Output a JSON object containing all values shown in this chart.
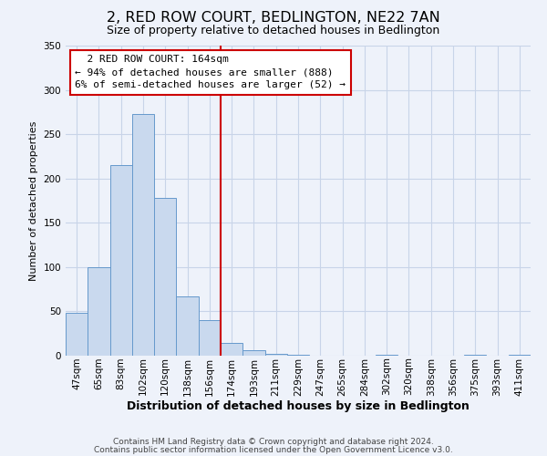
{
  "title": "2, RED ROW COURT, BEDLINGTON, NE22 7AN",
  "subtitle": "Size of property relative to detached houses in Bedlington",
  "xlabel": "Distribution of detached houses by size in Bedlington",
  "ylabel": "Number of detached properties",
  "footer_line1": "Contains HM Land Registry data © Crown copyright and database right 2024.",
  "footer_line2": "Contains public sector information licensed under the Open Government Licence v3.0.",
  "bin_labels": [
    "47sqm",
    "65sqm",
    "83sqm",
    "102sqm",
    "120sqm",
    "138sqm",
    "156sqm",
    "174sqm",
    "193sqm",
    "211sqm",
    "229sqm",
    "247sqm",
    "265sqm",
    "284sqm",
    "302sqm",
    "320sqm",
    "338sqm",
    "356sqm",
    "375sqm",
    "393sqm",
    "411sqm"
  ],
  "bar_values": [
    48,
    100,
    215,
    273,
    178,
    67,
    40,
    14,
    6,
    2,
    1,
    0,
    0,
    0,
    1,
    0,
    0,
    0,
    1,
    0,
    1
  ],
  "bar_color": "#c9d9ee",
  "bar_edge_color": "#6699cc",
  "vline_color": "#cc0000",
  "vline_x": 7,
  "annotation_title": "2 RED ROW COURT: 164sqm",
  "annotation_line2": "← 94% of detached houses are smaller (888)",
  "annotation_line3": "6% of semi-detached houses are larger (52) →",
  "annotation_box_color": "#cc0000",
  "ylim": [
    0,
    350
  ],
  "yticks": [
    0,
    50,
    100,
    150,
    200,
    250,
    300,
    350
  ],
  "grid_color": "#c8d4e8",
  "bg_color": "#eef2fa",
  "title_fontsize": 11.5,
  "subtitle_fontsize": 9,
  "ylabel_fontsize": 8,
  "xlabel_fontsize": 9,
  "tick_fontsize": 7.5,
  "footer_fontsize": 6.5
}
